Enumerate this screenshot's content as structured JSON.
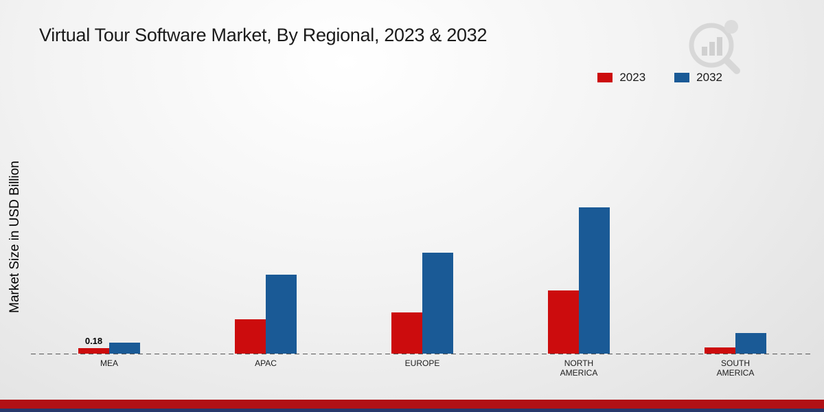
{
  "chart_data": {
    "type": "bar",
    "title": "Virtual Tour Software Market, By Regional, 2023 & 2032",
    "ylabel": "Market Size in USD Billion",
    "xlabel": "",
    "categories": [
      "MEA",
      "APAC",
      "EUROPE",
      "NORTH AMERICA",
      "SOUTH AMERICA"
    ],
    "series": [
      {
        "name": "2023",
        "color": "#cc0c0d",
        "values": [
          0.18,
          1.1,
          1.3,
          2.0,
          0.2
        ]
      },
      {
        "name": "2032",
        "color": "#1a5a96",
        "values": [
          0.35,
          2.5,
          3.2,
          4.65,
          0.65
        ]
      }
    ],
    "ylim": [
      0,
      8
    ],
    "grid": false,
    "baseline_style": "dashed",
    "legend_position": "top-right",
    "annotations": [
      {
        "series": 0,
        "category_index": 0,
        "text": "0.18"
      }
    ]
  },
  "branding": {
    "logo_icon": "bar-chart-magnifier-icon",
    "footer_red_color": "#b11116",
    "footer_navy_color": "#27386b",
    "logo_color": "#cfcfcf"
  }
}
